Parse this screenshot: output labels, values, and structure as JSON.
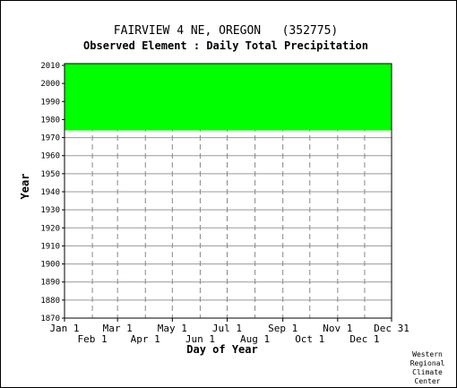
{
  "chart_data": {
    "type": "heatmap",
    "title": "FAIRVIEW 4 NE, OREGON   (352775)",
    "subtitle": "Observed Element : Daily Total Precipitation",
    "xlabel": "Day of Year",
    "ylabel": "Year",
    "x_ticks_upper": [
      "Jan 1",
      "Mar 1",
      "May 1",
      "Jul 1",
      "Sep 1",
      "Nov 1",
      "Dec 31"
    ],
    "x_ticks_lower": [
      "Feb 1",
      "Apr 1",
      "Jun 1",
      "Aug 1",
      "Oct 1",
      "Dec 1"
    ],
    "y_ticks": [
      "2010",
      "2000",
      "1990",
      "1980",
      "1970",
      "1960",
      "1950",
      "1940",
      "1930",
      "1920",
      "1910",
      "1900",
      "1890",
      "1880",
      "1870"
    ],
    "ylim": [
      1870,
      2011
    ],
    "xlim": [
      1,
      365
    ],
    "grid": true,
    "data_color": "#00ff00",
    "observed_years": [
      1974,
      2010
    ],
    "credit": [
      "Western",
      "Regional",
      "Climate",
      "Center"
    ]
  }
}
